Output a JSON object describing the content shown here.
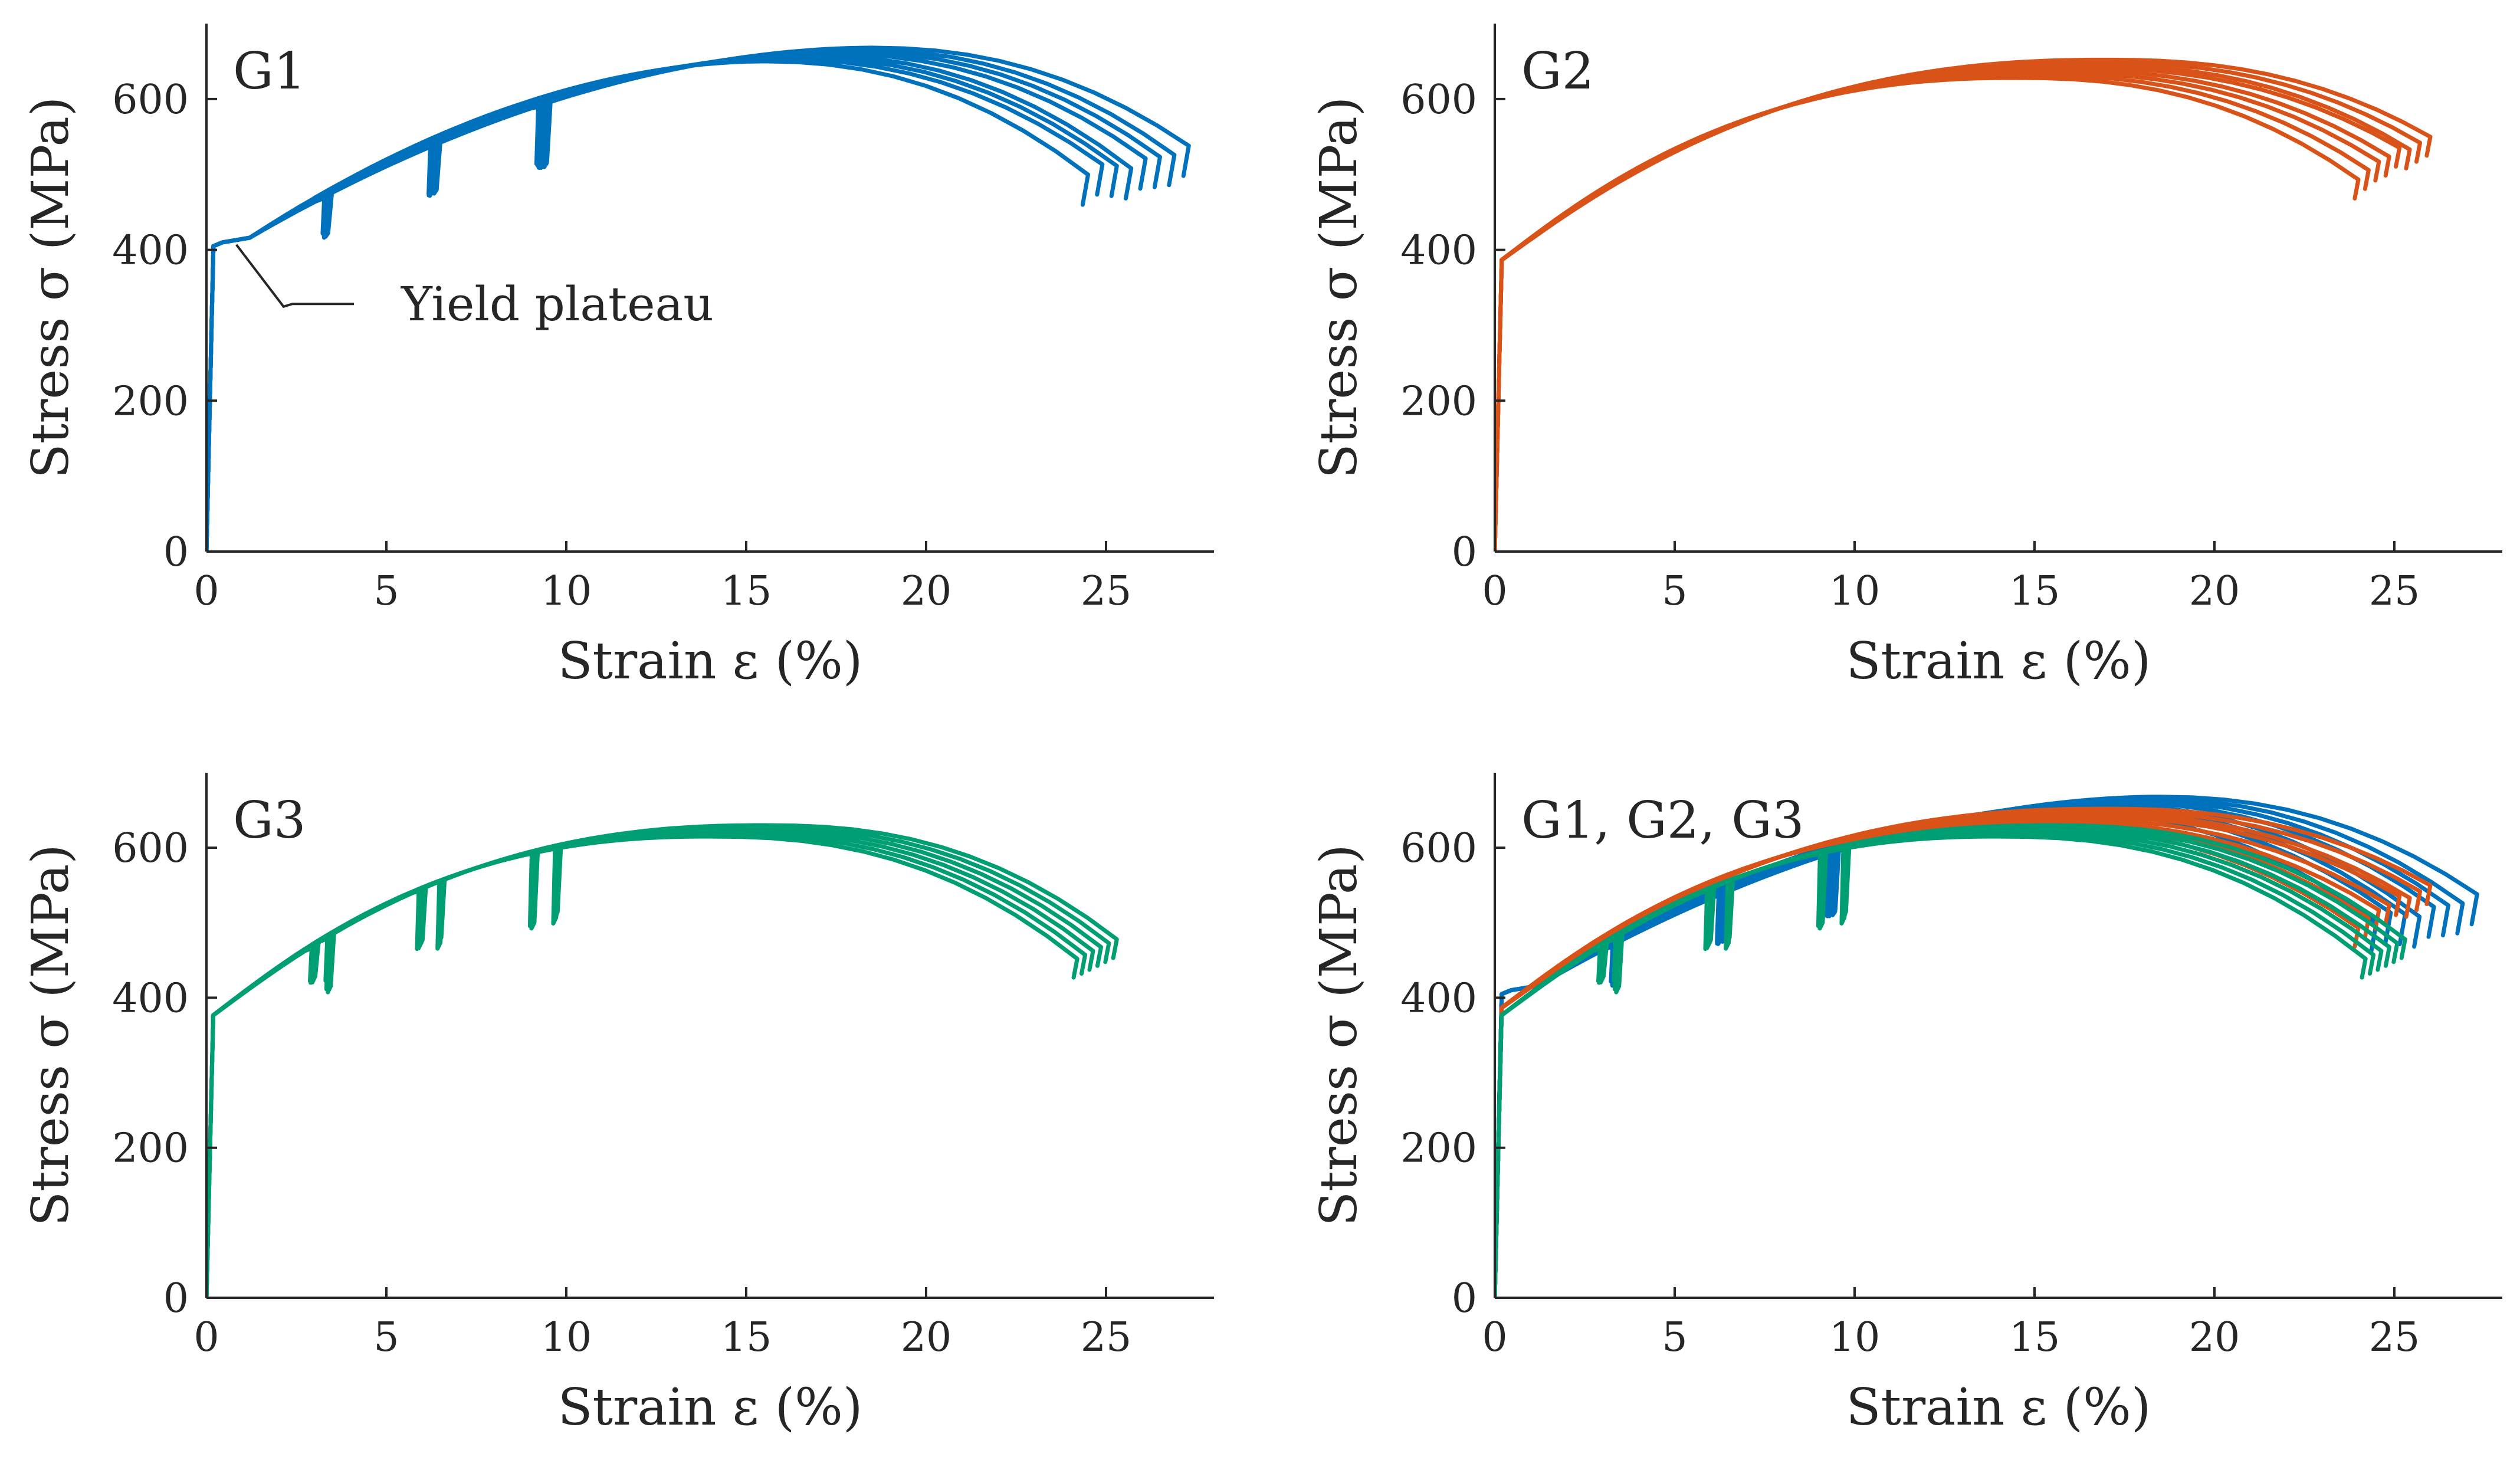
{
  "colors": {
    "G1": "#0072bd",
    "G2": "#d95319",
    "G3": "#009e73",
    "axis": "#262626"
  },
  "chart_data": [
    {
      "type": "line",
      "title": "G1",
      "xlabel": "Strain ε (%)",
      "ylabel": "Stress σ (MPa)",
      "xlim": [
        0,
        28
      ],
      "ylim": [
        0,
        700
      ],
      "xticks": [
        "0",
        "5",
        "10",
        "15",
        "20",
        "25"
      ],
      "yticks": [
        "0",
        "200",
        "400",
        "600"
      ],
      "grid": false,
      "annotation": {
        "text": "Yield plateau",
        "target": [
          0.7,
          410
        ]
      },
      "series": [
        {
          "name": "G1",
          "color_key": "G1",
          "specimens": 8,
          "yield_plateau": 410,
          "peak_stress_range": [
            650,
            668
          ],
          "peak_strain_range": [
            15.5,
            18.5
          ],
          "fracture_strain_range": [
            24.5,
            27.3
          ],
          "fracture_stress_range": [
            485,
            545
          ],
          "unload_strains": [
            3.3,
            6.3,
            9.3
          ],
          "unload_min_stress": [
            415,
            470,
            510
          ]
        }
      ]
    },
    {
      "type": "line",
      "title": "G2",
      "xlabel": "Strain ε (%)",
      "ylabel": "Stress σ (MPa)",
      "xlim": [
        0,
        28
      ],
      "ylim": [
        0,
        700
      ],
      "xticks": [
        "0",
        "5",
        "10",
        "15",
        "20",
        "25"
      ],
      "yticks": [
        "0",
        "200",
        "400",
        "600"
      ],
      "grid": false,
      "series": [
        {
          "name": "G2",
          "color_key": "G2",
          "specimens": 8,
          "proportional_limit": 380,
          "peak_stress_range": [
            628,
            652
          ],
          "peak_strain_range": [
            14.5,
            17.0
          ],
          "fracture_strain_range": [
            24.0,
            26.0
          ],
          "fracture_stress_range": [
            495,
            550
          ]
        }
      ]
    },
    {
      "type": "line",
      "title": "G3",
      "xlabel": "Strain ε (%)",
      "ylabel": "Stress σ (MPa)",
      "xlim": [
        0,
        28
      ],
      "ylim": [
        0,
        700
      ],
      "xticks": [
        "0",
        "5",
        "10",
        "15",
        "20",
        "25"
      ],
      "yticks": [
        "0",
        "200",
        "400",
        "600"
      ],
      "grid": false,
      "series": [
        {
          "name": "G3",
          "color_key": "G3",
          "specimens": 6,
          "proportional_limit": 370,
          "peak_stress_range": [
            615,
            630
          ],
          "peak_strain_range": [
            14.0,
            15.5
          ],
          "fracture_strain_range": [
            24.2,
            25.3
          ],
          "fracture_stress_range": [
            450,
            480
          ],
          "unload_strains": [
            2.9,
            3.4,
            5.9,
            6.4,
            9.0,
            9.6
          ],
          "unload_min_stress": [
            410,
            420,
            460,
            470,
            490,
            505
          ]
        }
      ]
    },
    {
      "type": "line",
      "title": "G1, G2, G3",
      "xlabel": "Strain ε (%)",
      "ylabel": "Stress σ (MPa)",
      "xlim": [
        0,
        28
      ],
      "ylim": [
        0,
        700
      ],
      "xticks": [
        "0",
        "5",
        "10",
        "15",
        "20",
        "25"
      ],
      "yticks": [
        "0",
        "200",
        "400",
        "600"
      ],
      "grid": false,
      "series": [
        {
          "name": "G1",
          "color_key": "G1",
          "note": "overlay of G1 curves"
        },
        {
          "name": "G2",
          "color_key": "G2",
          "note": "overlay of G2 curves"
        },
        {
          "name": "G3",
          "color_key": "G3",
          "note": "overlay of G3 curves"
        }
      ]
    }
  ]
}
